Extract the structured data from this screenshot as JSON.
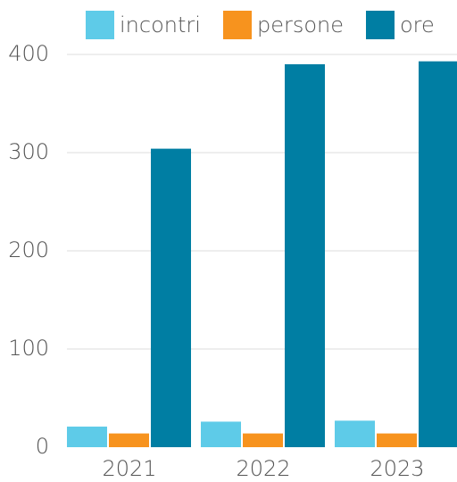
{
  "chart_data": {
    "type": "bar",
    "categories": [
      "2021",
      "2022",
      "2023"
    ],
    "series": [
      {
        "name": "incontri",
        "color": "#5ecbe8",
        "values": [
          21,
          26,
          27
        ]
      },
      {
        "name": "persone",
        "color": "#f7931e",
        "values": [
          14,
          14,
          14
        ]
      },
      {
        "name": "ore",
        "color": "#007ea3",
        "values": [
          304,
          390,
          393
        ]
      }
    ],
    "ylim": [
      0,
      400
    ],
    "yticks": [
      0,
      100,
      200,
      300,
      400
    ],
    "grid": true,
    "legend": "top"
  }
}
